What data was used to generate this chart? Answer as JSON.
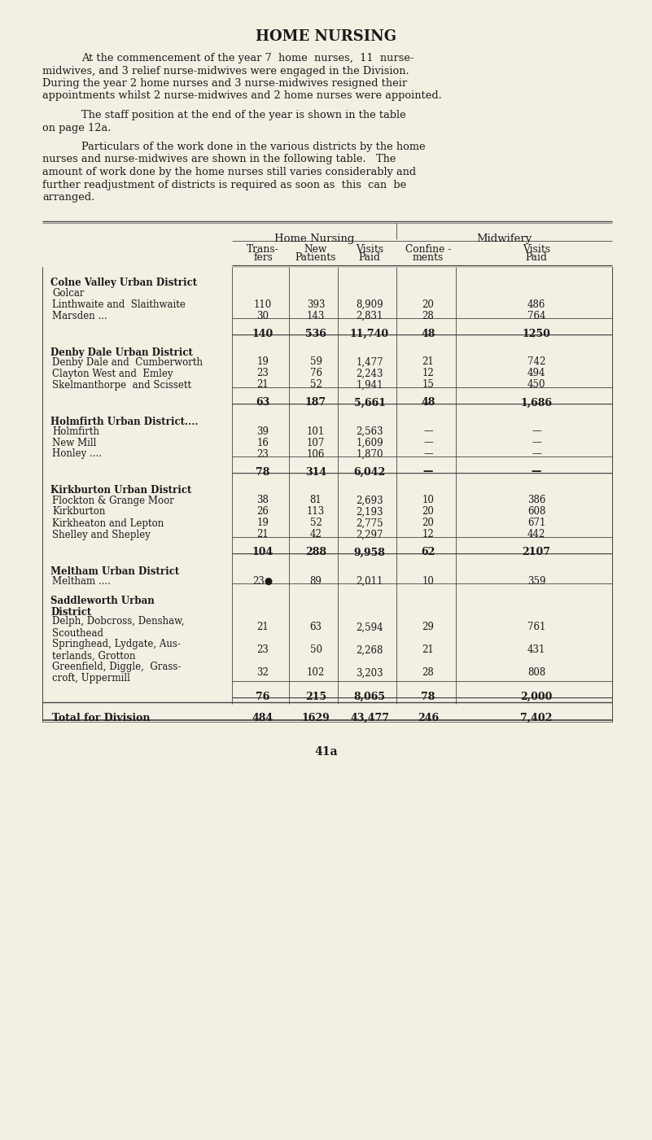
{
  "bg_color": "#f4efe3",
  "title": "HOME NURSING",
  "para1_indent": "        At the commencement of the year 7  home  nurses,  11  nurse-\nmidwives, and 3 relief nurse-midwives were engaged in the Division.\nDuring the year 2 home nurses and 3 nurse-midwives resigned their\nappointments whilst 2 nurse-midwives and 2 home nurses were appointed.",
  "para2_indent": "        The staff position at the end of the year is shown in the table\non page 12a.",
  "para3_indent": "        Particulars of the work done in the various districts by the home\nnurses and nurse-midwives are shown in the following table.   The\namount of work done by the home nurses still varies considerably and\nfurther readjustment of districts is required as soon as  this  can  be\narranged.",
  "col_header_1": "Home Nursing",
  "col_header_2": "Midwifery",
  "sub_headers": [
    "Trans-\nfers",
    "New\nPatients",
    "Visits\nPaid",
    "Confine -\nments",
    "Visits\nPaid"
  ],
  "sections": [
    {
      "district": "Colne Valley Urban District",
      "district_style": "smallcaps",
      "rows": [
        {
          "name": "Golcar",
          "name_dots": "    ....    ....    ....",
          "transfers": "",
          "new_patients": "",
          "visits_paid": "",
          "confinements": "",
          "midwifery_visits": ""
        },
        {
          "name": "Linthwaite and  Slaithwaite",
          "name_dots": "  ....",
          "transfers": "110",
          "new_patients": "393",
          "visits_paid": "8,909",
          "confinements": "20",
          "midwifery_visits": "486"
        },
        {
          "name": "Marsden ...",
          "name_dots": "    ....    ....    ....",
          "transfers": "30",
          "new_patients": "143",
          "visits_paid": "2,831",
          "confinements": "28",
          "midwifery_visits": "764"
        }
      ],
      "subtotal": {
        "transfers": "140",
        "new_patients": "536",
        "visits_paid": "11,740",
        "confinements": "48",
        "midwifery_visits": "1250"
      }
    },
    {
      "district": "Denby Dale Urban District",
      "district_style": "smallcaps",
      "rows": [
        {
          "name": "Denby Dale and  Cumberworth",
          "name_dots": "",
          "transfers": "19",
          "new_patients": "59",
          "visits_paid": "1,477",
          "confinements": "21",
          "midwifery_visits": "742"
        },
        {
          "name": "Clayton West and  Emley",
          "name_dots": "  ....",
          "transfers": "23",
          "new_patients": "76",
          "visits_paid": "2,243",
          "confinements": "12",
          "midwifery_visits": "494"
        },
        {
          "name": "Skelmanthorpe  and Scissett",
          "name_dots": "  ....",
          "transfers": "21",
          "new_patients": "52",
          "visits_paid": "1,941",
          "confinements": "15",
          "midwifery_visits": "450"
        }
      ],
      "subtotal": {
        "transfers": "63",
        "new_patients": "187",
        "visits_paid": "5,661",
        "confinements": "48",
        "midwifery_visits": "1,686"
      }
    },
    {
      "district": "Holmfirth Urban District....",
      "district_style": "smallcaps",
      "rows": [
        {
          "name": "Holmfirth",
          "name_dots": "    ....    ....    ....",
          "transfers": "39",
          "new_patients": "101",
          "visits_paid": "2,563",
          "confinements": "—",
          "midwifery_visits": "—"
        },
        {
          "name": "New Mill",
          "name_dots": "    ....    ....    ....",
          "transfers": "16",
          "new_patients": "107",
          "visits_paid": "1,609",
          "confinements": "—",
          "midwifery_visits": "—"
        },
        {
          "name": "Honley ....",
          "name_dots": "    ....    ....    ....",
          "transfers": "23",
          "new_patients": "106",
          "visits_paid": "1,870",
          "confinements": "—",
          "midwifery_visits": "—"
        }
      ],
      "subtotal": {
        "transfers": "78",
        "new_patients": "314",
        "visits_paid": "6,042",
        "confinements": "—",
        "midwifery_visits": "—"
      }
    },
    {
      "district": "Kirkburton Urban District",
      "district_style": "smallcaps",
      "rows": [
        {
          "name": "Flockton & Grange Moor",
          "name_dots": "  ....",
          "transfers": "38",
          "new_patients": "81",
          "visits_paid": "2,693",
          "confinements": "10",
          "midwifery_visits": "386"
        },
        {
          "name": "Kirkburton",
          "name_dots": "    ....    ....    ....",
          "transfers": "26",
          "new_patients": "113",
          "visits_paid": "2,193",
          "confinements": "20",
          "midwifery_visits": "608"
        },
        {
          "name": "Kirkheaton and Lepton",
          "name_dots": "    ....",
          "transfers": "19",
          "new_patients": "52",
          "visits_paid": "2,775",
          "confinements": "20",
          "midwifery_visits": "671"
        },
        {
          "name": "Shelley and Shepley",
          "name_dots": "    ....",
          "transfers": "21",
          "new_patients": "42",
          "visits_paid": "2,297",
          "confinements": "12",
          "midwifery_visits": "442"
        }
      ],
      "subtotal": {
        "transfers": "104",
        "new_patients": "288",
        "visits_paid": "9,958",
        "confinements": "62",
        "midwifery_visits": "2107"
      }
    },
    {
      "district": "Meltham Urban District",
      "district_style": "smallcaps",
      "rows": [
        {
          "name": "Meltham ....",
          "name_dots": "    ....    ....    ....",
          "transfers": "23●",
          "new_patients": "89",
          "visits_paid": "2,011",
          "confinements": "10",
          "midwifery_visits": "359"
        }
      ],
      "subtotal": null
    },
    {
      "district": "Saddleworth Urban\nDistrict",
      "district_style": "smallcaps",
      "rows": [
        {
          "name": "Delph, Dobcross, Denshaw,\nScouthead",
          "name_dots": "",
          "transfers": "21",
          "new_patients": "63",
          "visits_paid": "2,594",
          "confinements": "29",
          "midwifery_visits": "761"
        },
        {
          "name": "Springhead, Lydgate, Aus-\nterlands, Grotton",
          "name_dots": "",
          "transfers": "23",
          "new_patients": "50",
          "visits_paid": "2,268",
          "confinements": "21",
          "midwifery_visits": "431"
        },
        {
          "name": "Greenfield, Diggle,  Grass-\ncroft, Uppermill",
          "name_dots": "",
          "transfers": "32",
          "new_patients": "102",
          "visits_paid": "3,203",
          "confinements": "28",
          "midwifery_visits": "808"
        }
      ],
      "subtotal": {
        "transfers": "76",
        "new_patients": "215",
        "visits_paid": "8,065",
        "confinements": "78",
        "midwifery_visits": "2,000"
      }
    }
  ],
  "total": {
    "label": "Total for Division",
    "transfers": "484",
    "new_patients": "1629",
    "visits_paid": "43,477",
    "confinements": "246",
    "midwifery_visits": "7,402"
  },
  "page_number": "41a",
  "text_color": "#1a1a1a",
  "line_color": "#444444"
}
